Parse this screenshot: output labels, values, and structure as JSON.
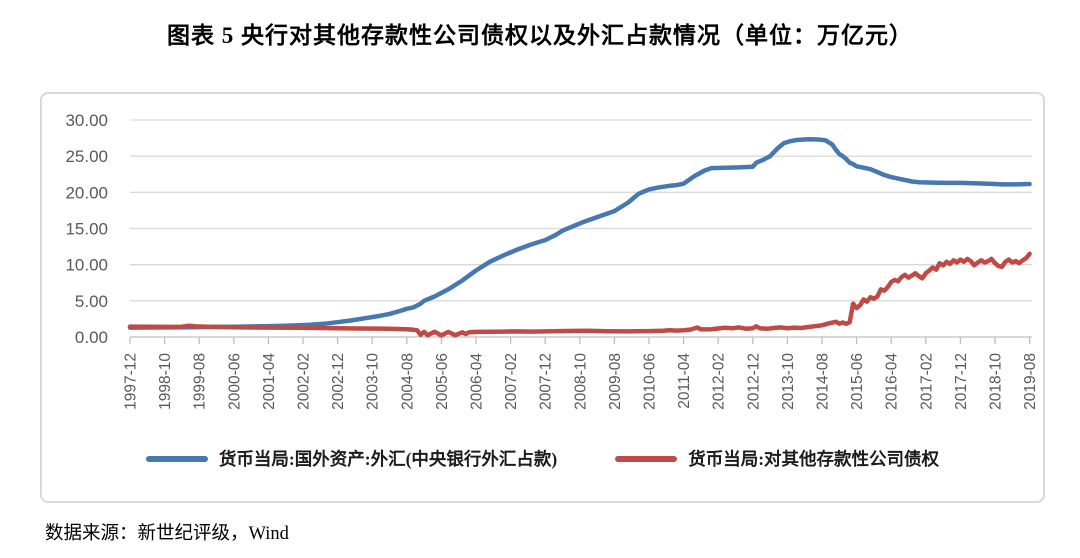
{
  "title": "图表 5  央行对其他存款性公司债权以及外汇占款情况（单位：万亿元）",
  "source": "数据来源：新世纪评级，Wind",
  "chart_data": {
    "type": "line",
    "unit": "万亿元",
    "grid": true,
    "legend_position": "bottom",
    "ylim": [
      0,
      30
    ],
    "y_ticks": [
      0,
      5,
      10,
      15,
      20,
      25,
      30
    ],
    "y_tick_labels": [
      "0.00",
      "5.00",
      "10.00",
      "15.00",
      "20.00",
      "25.00",
      "30.00"
    ],
    "x_start": "1997-12",
    "x_end": "2019-08",
    "x_tick_interval_months": 10,
    "x_total_months": 260,
    "x_tick_labels": [
      "1997-12",
      "1998-10",
      "1999-08",
      "2000-06",
      "2001-04",
      "2002-02",
      "2002-12",
      "2003-10",
      "2004-08",
      "2005-06",
      "2006-04",
      "2007-02",
      "2007-12",
      "2008-10",
      "2009-08",
      "2010-06",
      "2011-04",
      "2012-02",
      "2012-12",
      "2013-10",
      "2014-08",
      "2015-06",
      "2016-04",
      "2017-02",
      "2017-12",
      "2018-10",
      "2019-08"
    ],
    "colors": {
      "gridline": "#D9D9D9",
      "axis_line": "#BFBFBF",
      "axis_text": "#595959",
      "series_fx_blue": "#4878B0",
      "series_claims_red": "#BE4B48"
    },
    "series": [
      {
        "name": "货币当局:国外资产:外汇(中央银行外汇占款)",
        "color": "#4878B0",
        "points": [
          [
            0,
            1.3
          ],
          [
            6,
            1.31
          ],
          [
            12,
            1.33
          ],
          [
            18,
            1.36
          ],
          [
            24,
            1.4
          ],
          [
            30,
            1.43
          ],
          [
            36,
            1.46
          ],
          [
            42,
            1.52
          ],
          [
            48,
            1.6
          ],
          [
            52,
            1.68
          ],
          [
            56,
            1.82
          ],
          [
            60,
            2.05
          ],
          [
            64,
            2.3
          ],
          [
            68,
            2.6
          ],
          [
            72,
            2.9
          ],
          [
            75,
            3.2
          ],
          [
            78,
            3.6
          ],
          [
            80,
            3.9
          ],
          [
            82,
            4.1
          ],
          [
            84,
            4.6
          ],
          [
            85,
            5.0
          ],
          [
            88,
            5.6
          ],
          [
            92,
            6.6
          ],
          [
            96,
            7.8
          ],
          [
            100,
            9.2
          ],
          [
            104,
            10.4
          ],
          [
            108,
            11.3
          ],
          [
            112,
            12.1
          ],
          [
            116,
            12.8
          ],
          [
            120,
            13.4
          ],
          [
            123,
            14.1
          ],
          [
            125,
            14.7
          ],
          [
            128,
            15.3
          ],
          [
            131,
            15.9
          ],
          [
            134,
            16.4
          ],
          [
            137,
            16.9
          ],
          [
            140,
            17.4
          ],
          [
            144,
            18.6
          ],
          [
            147,
            19.8
          ],
          [
            150,
            20.4
          ],
          [
            153,
            20.7
          ],
          [
            156,
            20.9
          ],
          [
            158,
            21.0
          ],
          [
            160,
            21.2
          ],
          [
            163,
            22.2
          ],
          [
            166,
            23.0
          ],
          [
            168,
            23.35
          ],
          [
            172,
            23.4
          ],
          [
            176,
            23.45
          ],
          [
            180,
            23.55
          ],
          [
            181,
            24.1
          ],
          [
            183,
            24.5
          ],
          [
            185,
            25.0
          ],
          [
            187,
            26.0
          ],
          [
            189,
            26.8
          ],
          [
            191,
            27.1
          ],
          [
            193,
            27.25
          ],
          [
            196,
            27.35
          ],
          [
            199,
            27.3
          ],
          [
            201,
            27.2
          ],
          [
            203,
            26.6
          ],
          [
            204,
            25.9
          ],
          [
            205,
            25.3
          ],
          [
            206,
            25.0
          ],
          [
            207,
            24.6
          ],
          [
            208,
            24.1
          ],
          [
            209,
            23.9
          ],
          [
            210,
            23.6
          ],
          [
            212,
            23.4
          ],
          [
            214,
            23.2
          ],
          [
            216,
            22.8
          ],
          [
            218,
            22.4
          ],
          [
            220,
            22.1
          ],
          [
            222,
            21.9
          ],
          [
            224,
            21.7
          ],
          [
            226,
            21.5
          ],
          [
            228,
            21.4
          ],
          [
            232,
            21.35
          ],
          [
            236,
            21.3
          ],
          [
            240,
            21.3
          ],
          [
            244,
            21.25
          ],
          [
            248,
            21.2
          ],
          [
            250,
            21.15
          ],
          [
            252,
            21.1
          ],
          [
            256,
            21.1
          ],
          [
            260,
            21.15
          ]
        ]
      },
      {
        "name": "货币当局:对其他存款性公司债权",
        "color": "#BE4B48",
        "points": [
          [
            0,
            1.44
          ],
          [
            6,
            1.42
          ],
          [
            12,
            1.39
          ],
          [
            15,
            1.43
          ],
          [
            17,
            1.56
          ],
          [
            19,
            1.46
          ],
          [
            24,
            1.4
          ],
          [
            30,
            1.36
          ],
          [
            36,
            1.32
          ],
          [
            42,
            1.3
          ],
          [
            48,
            1.28
          ],
          [
            54,
            1.24
          ],
          [
            60,
            1.22
          ],
          [
            66,
            1.18
          ],
          [
            72,
            1.16
          ],
          [
            76,
            1.12
          ],
          [
            80,
            1.06
          ],
          [
            82,
            1.0
          ],
          [
            83,
            0.92
          ],
          [
            84,
            0.3
          ],
          [
            85,
            0.7
          ],
          [
            86,
            0.25
          ],
          [
            88,
            0.72
          ],
          [
            90,
            0.22
          ],
          [
            92,
            0.7
          ],
          [
            94,
            0.25
          ],
          [
            96,
            0.65
          ],
          [
            97,
            0.42
          ],
          [
            98,
            0.66
          ],
          [
            100,
            0.7
          ],
          [
            104,
            0.73
          ],
          [
            108,
            0.75
          ],
          [
            112,
            0.77
          ],
          [
            116,
            0.74
          ],
          [
            120,
            0.78
          ],
          [
            126,
            0.83
          ],
          [
            132,
            0.87
          ],
          [
            138,
            0.8
          ],
          [
            144,
            0.77
          ],
          [
            150,
            0.81
          ],
          [
            154,
            0.86
          ],
          [
            156,
            0.93
          ],
          [
            158,
            0.88
          ],
          [
            160,
            0.93
          ],
          [
            162,
            1.02
          ],
          [
            164,
            1.32
          ],
          [
            165,
            1.05
          ],
          [
            168,
            1.08
          ],
          [
            170,
            1.18
          ],
          [
            172,
            1.28
          ],
          [
            174,
            1.2
          ],
          [
            176,
            1.33
          ],
          [
            178,
            1.15
          ],
          [
            180,
            1.22
          ],
          [
            181,
            1.48
          ],
          [
            182,
            1.22
          ],
          [
            184,
            1.14
          ],
          [
            186,
            1.25
          ],
          [
            188,
            1.33
          ],
          [
            190,
            1.2
          ],
          [
            192,
            1.3
          ],
          [
            194,
            1.25
          ],
          [
            196,
            1.38
          ],
          [
            198,
            1.5
          ],
          [
            200,
            1.62
          ],
          [
            202,
            1.9
          ],
          [
            204,
            2.1
          ],
          [
            205,
            1.85
          ],
          [
            206,
            2.0
          ],
          [
            207,
            1.82
          ],
          [
            208,
            2.05
          ],
          [
            209,
            4.6
          ],
          [
            210,
            4.0
          ],
          [
            211,
            4.4
          ],
          [
            212,
            5.2
          ],
          [
            213,
            4.9
          ],
          [
            214,
            5.5
          ],
          [
            215,
            5.3
          ],
          [
            216,
            5.6
          ],
          [
            217,
            6.6
          ],
          [
            218,
            6.4
          ],
          [
            219,
            6.9
          ],
          [
            220,
            7.6
          ],
          [
            221,
            7.9
          ],
          [
            222,
            7.7
          ],
          [
            223,
            8.3
          ],
          [
            224,
            8.6
          ],
          [
            225,
            8.2
          ],
          [
            226,
            8.5
          ],
          [
            227,
            8.8
          ],
          [
            228,
            8.4
          ],
          [
            229,
            8.1
          ],
          [
            230,
            8.8
          ],
          [
            231,
            9.2
          ],
          [
            232,
            9.6
          ],
          [
            233,
            9.3
          ],
          [
            234,
            10.2
          ],
          [
            235,
            9.9
          ],
          [
            236,
            10.4
          ],
          [
            237,
            10.1
          ],
          [
            238,
            10.6
          ],
          [
            239,
            10.3
          ],
          [
            240,
            10.7
          ],
          [
            241,
            10.4
          ],
          [
            242,
            10.8
          ],
          [
            243,
            10.5
          ],
          [
            244,
            9.9
          ],
          [
            245,
            10.3
          ],
          [
            246,
            10.6
          ],
          [
            247,
            10.3
          ],
          [
            248,
            10.5
          ],
          [
            249,
            10.8
          ],
          [
            250,
            10.2
          ],
          [
            251,
            9.8
          ],
          [
            252,
            9.7
          ],
          [
            253,
            10.4
          ],
          [
            254,
            10.7
          ],
          [
            255,
            10.3
          ],
          [
            256,
            10.5
          ],
          [
            257,
            10.2
          ],
          [
            258,
            10.6
          ],
          [
            259,
            10.9
          ],
          [
            260,
            11.5
          ]
        ]
      }
    ]
  }
}
